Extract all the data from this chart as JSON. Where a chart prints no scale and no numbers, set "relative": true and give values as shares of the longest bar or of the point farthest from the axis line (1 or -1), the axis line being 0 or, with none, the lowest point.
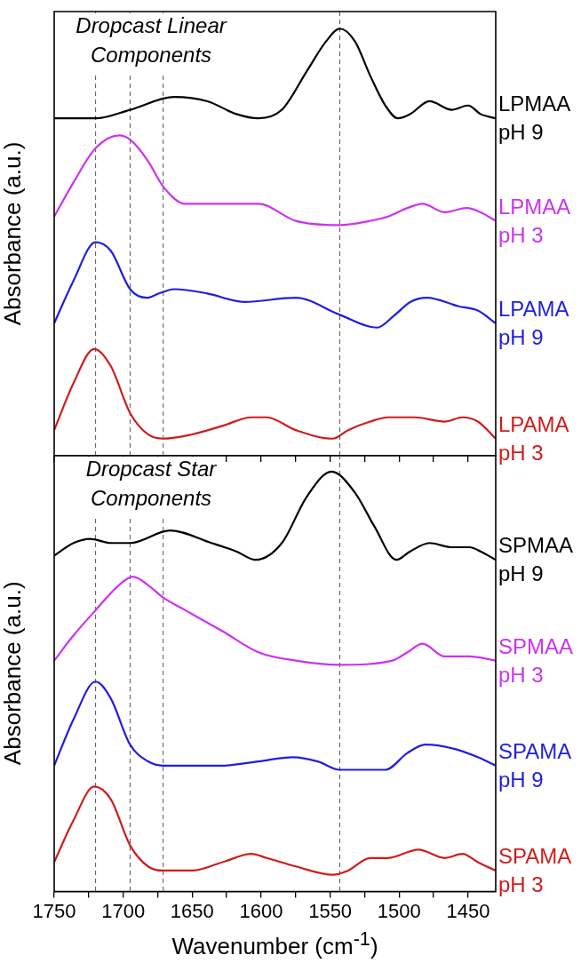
{
  "chart_data": [
    {
      "type": "line",
      "title": "Dropcast Linear Components",
      "ylabel": "Absorbance (a.u.)",
      "relative": true,
      "marker": "none",
      "tick_labels": false,
      "xlim": [
        1750,
        1430
      ],
      "xticks": [
        1750,
        {
          "value": 1725,
          "label": null
        },
        1700,
        {
          "value": 1675,
          "label": null
        },
        1650,
        {
          "value": 1625,
          "label": null
        },
        1600,
        {
          "value": 1575,
          "label": null
        },
        1550,
        {
          "value": 1525,
          "label": null
        },
        1500,
        {
          "value": 1475,
          "label": null
        },
        1450
      ],
      "ref_lines": [
        {
          "axis": "x",
          "value": 1720,
          "color": "#555555",
          "line_style": "dashed"
        },
        {
          "axis": "x",
          "value": 1695,
          "color": "#555555",
          "line_style": "dashed"
        },
        {
          "axis": "x",
          "value": 1671,
          "color": "#555555",
          "line_style": "dashed"
        },
        {
          "axis": "x",
          "value": 1543,
          "color": "#555555",
          "line_style": "dashed"
        }
      ],
      "series": [
        {
          "name": "LPMAA pH 9",
          "color": "#000000",
          "x": [
            1750,
            1720,
            1695,
            1663,
            1639,
            1618,
            1602,
            1585,
            1567,
            1553,
            1543,
            1532,
            1521,
            1510,
            1501,
            1492,
            1478,
            1462,
            1450,
            1441,
            1430
          ],
          "values": [
            0.79,
            0.79,
            0.81,
            0.84,
            0.83,
            0.8,
            0.79,
            0.81,
            0.9,
            0.97,
            1.0,
            0.97,
            0.89,
            0.82,
            0.79,
            0.8,
            0.83,
            0.81,
            0.82,
            0.8,
            0.79
          ]
        },
        {
          "name": "LPMAA pH 3",
          "color": "#cc33ee",
          "x": [
            1750,
            1736,
            1720,
            1703,
            1695,
            1682,
            1671,
            1655,
            1639,
            1615,
            1602,
            1575,
            1543,
            1521,
            1508,
            1494,
            1483,
            1467,
            1451,
            1441,
            1430
          ],
          "values": [
            0.56,
            0.64,
            0.72,
            0.75,
            0.74,
            0.69,
            0.63,
            0.59,
            0.59,
            0.59,
            0.59,
            0.55,
            0.54,
            0.55,
            0.56,
            0.58,
            0.59,
            0.57,
            0.58,
            0.57,
            0.55
          ]
        },
        {
          "name": "LPAMA pH 9",
          "color": "#1f1fe0",
          "x": [
            1750,
            1736,
            1720,
            1709,
            1695,
            1683,
            1674,
            1663,
            1639,
            1612,
            1575,
            1543,
            1516,
            1503,
            1492,
            1480,
            1457,
            1443,
            1430
          ],
          "values": [
            0.31,
            0.41,
            0.5,
            0.48,
            0.39,
            0.37,
            0.38,
            0.39,
            0.38,
            0.36,
            0.37,
            0.33,
            0.3,
            0.33,
            0.36,
            0.37,
            0.35,
            0.34,
            0.31
          ]
        },
        {
          "name": "LPAMA pH 3",
          "color": "#d01c1c",
          "x": [
            1750,
            1736,
            1721,
            1709,
            1695,
            1682,
            1671,
            1650,
            1628,
            1607,
            1596,
            1575,
            1548,
            1537,
            1521,
            1508,
            1489,
            1467,
            1454,
            1443,
            1430
          ],
          "values": [
            0.06,
            0.17,
            0.25,
            0.21,
            0.1,
            0.05,
            0.04,
            0.05,
            0.07,
            0.09,
            0.09,
            0.06,
            0.04,
            0.06,
            0.08,
            0.09,
            0.09,
            0.08,
            0.09,
            0.08,
            0.04
          ]
        }
      ]
    },
    {
      "type": "line",
      "title": "Dropcast Star Components",
      "xlabel": "Wavenumber (cm$^{-1}$)",
      "ylabel": "Absorbance (a.u.)",
      "relative": true,
      "marker": "none",
      "tick_labels": "x",
      "xlim": [
        1750,
        1430
      ],
      "xticks": [
        1750,
        {
          "value": 1725,
          "label": null
        },
        1700,
        {
          "value": 1675,
          "label": null
        },
        1650,
        {
          "value": 1625,
          "label": null
        },
        1600,
        {
          "value": 1575,
          "label": null
        },
        1550,
        {
          "value": 1525,
          "label": null
        },
        1500,
        {
          "value": 1475,
          "label": null
        },
        1450
      ],
      "ref_lines": [
        {
          "axis": "x",
          "value": 1720,
          "color": "#555555",
          "line_style": "dashed"
        },
        {
          "axis": "x",
          "value": 1695,
          "color": "#555555",
          "line_style": "dashed"
        },
        {
          "axis": "x",
          "value": 1671,
          "color": "#555555",
          "line_style": "dashed"
        },
        {
          "axis": "x",
          "value": 1543,
          "color": "#555555",
          "line_style": "dashed"
        }
      ],
      "series": [
        {
          "name": "SPMAA pH 9",
          "color": "#000000",
          "x": [
            1750,
            1736,
            1724,
            1709,
            1695,
            1666,
            1636,
            1618,
            1604,
            1585,
            1567,
            1549,
            1532,
            1518,
            1502,
            1492,
            1478,
            1462,
            1449,
            1441,
            1430
          ],
          "values": [
            0.8,
            0.83,
            0.84,
            0.83,
            0.83,
            0.86,
            0.83,
            0.81,
            0.79,
            0.83,
            0.94,
            1.0,
            0.95,
            0.87,
            0.79,
            0.81,
            0.83,
            0.82,
            0.82,
            0.81,
            0.79
          ]
        },
        {
          "name": "SPMAA pH 3",
          "color": "#cc33ee",
          "x": [
            1750,
            1736,
            1720,
            1703,
            1693,
            1682,
            1671,
            1655,
            1628,
            1602,
            1575,
            1543,
            1505,
            1494,
            1483,
            1467,
            1449,
            1430
          ],
          "values": [
            0.55,
            0.61,
            0.67,
            0.73,
            0.75,
            0.73,
            0.7,
            0.67,
            0.62,
            0.57,
            0.55,
            0.54,
            0.55,
            0.57,
            0.59,
            0.56,
            0.56,
            0.55
          ]
        },
        {
          "name": "SPAMA pH 9",
          "color": "#1f1fe0",
          "x": [
            1750,
            1736,
            1720,
            1709,
            1695,
            1682,
            1671,
            1628,
            1602,
            1577,
            1559,
            1543,
            1510,
            1494,
            1481,
            1460,
            1443,
            1430
          ],
          "values": [
            0.3,
            0.41,
            0.5,
            0.46,
            0.35,
            0.31,
            0.3,
            0.3,
            0.31,
            0.32,
            0.31,
            0.29,
            0.29,
            0.33,
            0.35,
            0.34,
            0.32,
            0.3
          ]
        },
        {
          "name": "SPAMA pH 3",
          "color": "#d01c1c",
          "x": [
            1750,
            1736,
            1721,
            1709,
            1695,
            1682,
            1671,
            1650,
            1628,
            1607,
            1596,
            1575,
            1548,
            1537,
            1521,
            1508,
            1486,
            1467,
            1454,
            1443,
            1430
          ],
          "values": [
            0.07,
            0.17,
            0.25,
            0.22,
            0.11,
            0.06,
            0.05,
            0.05,
            0.07,
            0.09,
            0.08,
            0.06,
            0.04,
            0.05,
            0.08,
            0.08,
            0.1,
            0.08,
            0.09,
            0.07,
            0.05
          ]
        }
      ]
    }
  ]
}
